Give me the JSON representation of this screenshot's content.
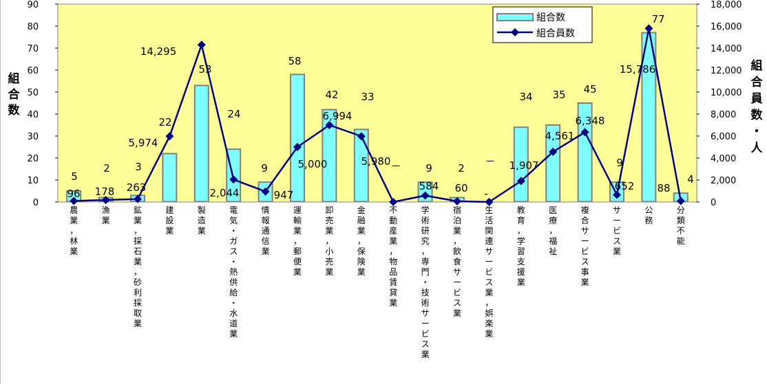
{
  "chart_data": {
    "type": "bar",
    "categories": [
      "農業，林業",
      "漁業",
      "鉱業，採石業，砂利採取業",
      "建設業",
      "製造業",
      "電気・ガス・熱供給・水道業",
      "情報通信業",
      "運輸業，郵便業",
      "卸売業，小売業",
      "金融業，保険業",
      "不動産業，物品賃貸業",
      "学術研究，専門・技術サービス業",
      "宿泊業，飲食サービス業",
      "生活関連サービス業，娯楽業",
      "教育，学習支援業",
      "医療，福祉",
      "複合サービス事業",
      "サービス業",
      "公務",
      "分類不能"
    ],
    "series": [
      {
        "name": "組合数",
        "type": "bar",
        "axis": "left",
        "values": [
          5,
          2,
          3,
          22,
          53,
          24,
          9,
          58,
          42,
          33,
          0,
          9,
          2,
          0,
          34,
          35,
          45,
          9,
          77,
          4
        ],
        "labels": [
          "5",
          "2",
          "3",
          "22",
          "53",
          "24",
          "9",
          "58",
          "42",
          "33",
          "－",
          "9",
          "2",
          "－",
          "34",
          "35",
          "45",
          "9",
          "77",
          "4"
        ]
      },
      {
        "name": "組合員数",
        "type": "line",
        "axis": "right",
        "values": [
          96,
          178,
          263,
          5974,
          14295,
          2044,
          947,
          5000,
          6994,
          5980,
          0,
          584,
          60,
          0,
          1907,
          4561,
          6348,
          652,
          15786,
          88
        ],
        "labels": [
          "96",
          "178",
          "263",
          "5,974",
          "14,295",
          "2,044",
          "947",
          "5,000",
          "6,994",
          "5,980",
          "",
          "584",
          "60",
          "-",
          "1,907",
          "4,561",
          "6,348",
          "652",
          "15,786",
          "88"
        ]
      }
    ],
    "ylabel_left": "組合数",
    "ylabel_right": "組合員数・人",
    "ylim_left": [
      0,
      90
    ],
    "ylim_right": [
      0,
      18000
    ],
    "yticks_left": [
      "0",
      "10",
      "20",
      "30",
      "40",
      "50",
      "60",
      "70",
      "80",
      "90"
    ],
    "yticks_right": [
      "0",
      "2,000",
      "4,000",
      "6,000",
      "8,000",
      "10,000",
      "12,000",
      "14,000",
      "16,000",
      "18,000"
    ],
    "legend_position": "top-right",
    "grid": false,
    "colors": {
      "plot_bg": "#ffff99",
      "bar_fill": "#80ffff",
      "bar_stroke": "#7f7f7f",
      "line": "#000080"
    }
  }
}
